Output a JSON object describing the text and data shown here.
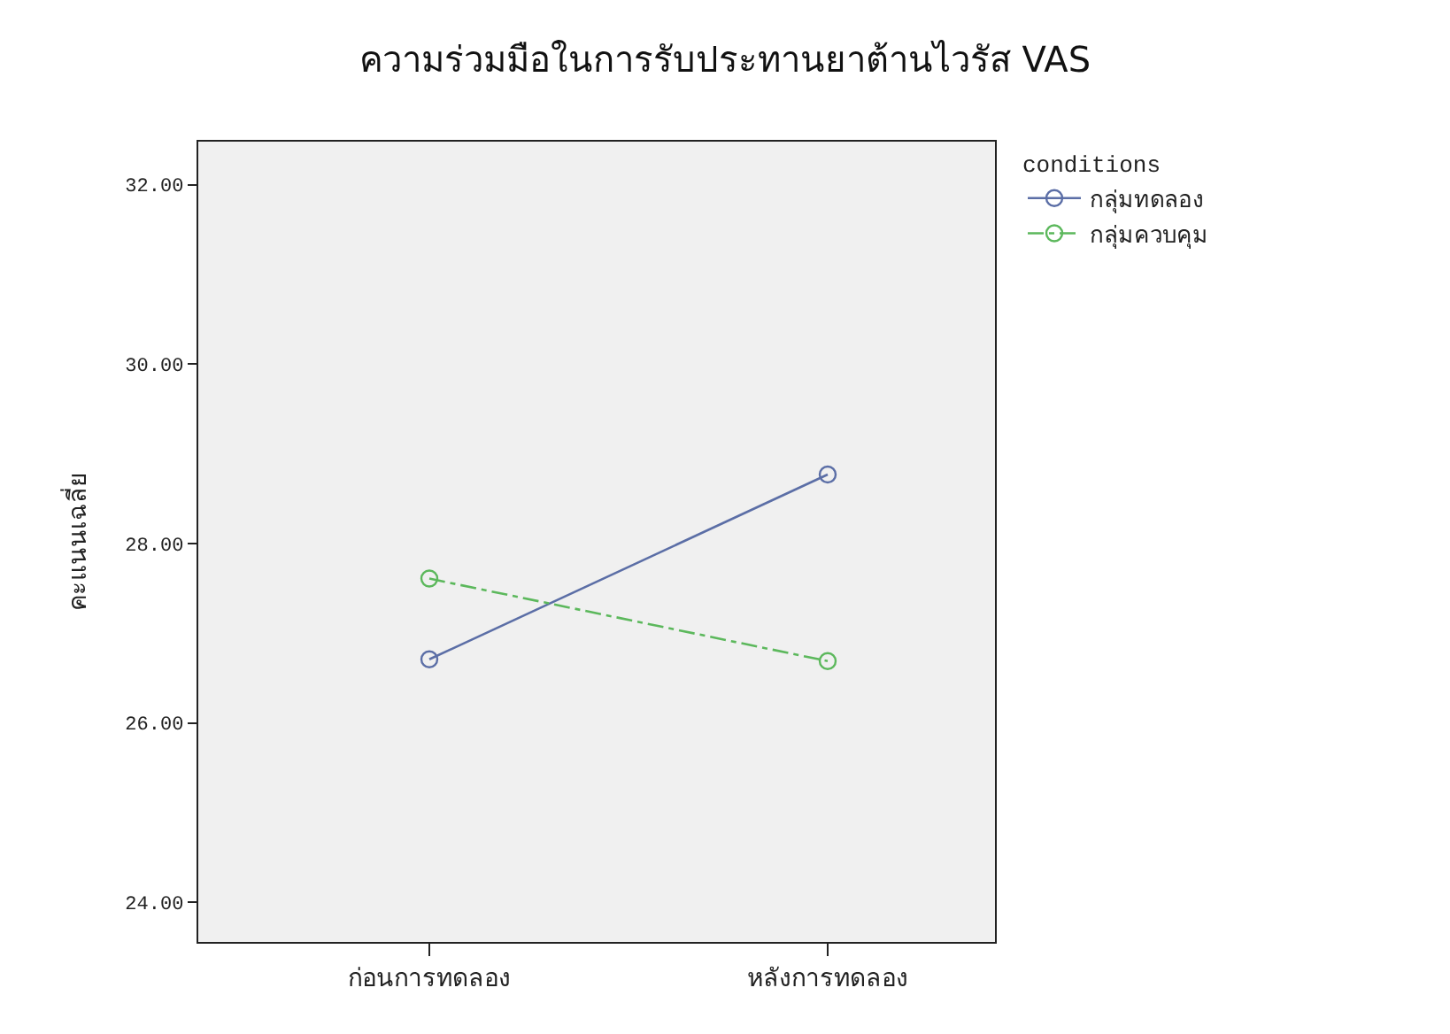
{
  "chart_data": {
    "type": "line",
    "title": "ความร่วมมือในการรับประทานยาต้านไวรัส VAS",
    "ylabel": "คะแนนเฉลี่ย",
    "legend_title": "conditions",
    "categories": [
      "ก่อนการทดลอง",
      "หลังการทดลอง"
    ],
    "series": [
      {
        "name": "กลุ่มทดลอง",
        "color": "#5b6ea6",
        "values": [
          26.71,
          28.77
        ],
        "line_style": "solid"
      },
      {
        "name": "กลุ่มควบคุม",
        "color": "#5cb85c",
        "values": [
          27.61,
          26.69
        ],
        "line_style": "dashed"
      }
    ],
    "ylim": [
      23.56,
      32.48
    ],
    "yticks": [
      {
        "value": 24,
        "label": "24.00"
      },
      {
        "value": 26,
        "label": "26.00"
      },
      {
        "value": 28,
        "label": "28.00"
      },
      {
        "value": 30,
        "label": "30.00"
      },
      {
        "value": 32,
        "label": "32.00"
      }
    ],
    "grid": false,
    "legend": "top right",
    "marker": "circle"
  }
}
